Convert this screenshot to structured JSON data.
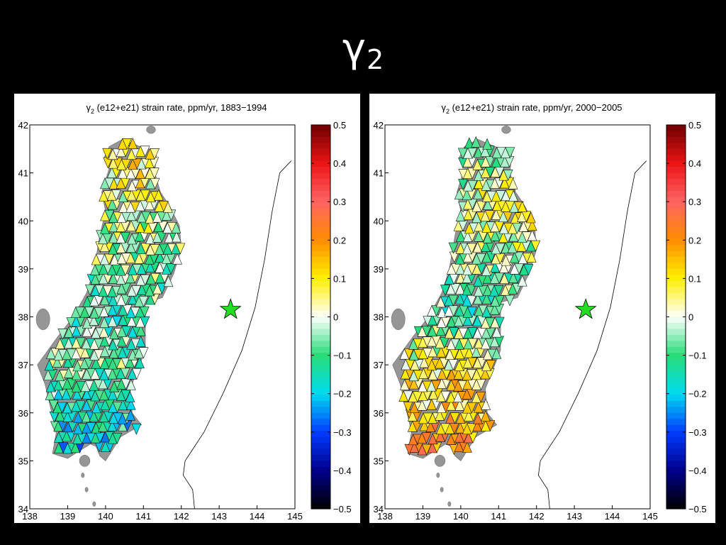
{
  "slide": {
    "title_main": "γ",
    "title_sub": "2"
  },
  "chart_data": [
    {
      "type": "heatmap",
      "title_sym": "γ",
      "title_sub": "2",
      "title_rest": " (e12+e21) strain rate, ppm/yr, 1883−1994",
      "xlim": [
        138,
        145
      ],
      "ylim": [
        34,
        42
      ],
      "x_ticks": [
        "138",
        "139",
        "140",
        "141",
        "142",
        "143",
        "144",
        "145"
      ],
      "y_ticks": [
        "34",
        "35",
        "36",
        "37",
        "38",
        "39",
        "40",
        "41",
        "42"
      ],
      "colorbar": {
        "min": -0.5,
        "max": 0.5,
        "ticks": [
          "−0.5",
          "−0.4",
          "−0.3",
          "−0.2",
          "−0.1",
          "0",
          "0.1",
          "0.2",
          "0.3",
          "0.4",
          "0.5"
        ]
      },
      "epicenter": {
        "lon": 143.3,
        "lat": 38.15,
        "marker": "green-star"
      },
      "regions": [
        {
          "lat": 41.2,
          "value": 0.08
        },
        {
          "lat": 40.2,
          "value": 0.02
        },
        {
          "lat": 39.0,
          "value": -0.05
        },
        {
          "lat": 38.0,
          "value": -0.1
        },
        {
          "lat": 37.0,
          "value": -0.05
        },
        {
          "lat": 36.2,
          "value": -0.12
        },
        {
          "lat": 35.3,
          "value": -0.2
        }
      ],
      "grid": false,
      "colors": {
        "epicenter": "#22dd22",
        "land": "#969696"
      }
    },
    {
      "type": "heatmap",
      "title_sym": "γ",
      "title_sub": "2",
      "title_rest": " (e12+e21) strain rate, ppm/yr, 2000−2005",
      "xlim": [
        138,
        145
      ],
      "ylim": [
        34,
        42
      ],
      "x_ticks": [
        "138",
        "139",
        "140",
        "141",
        "142",
        "143",
        "144",
        "145"
      ],
      "y_ticks": [
        "34",
        "35",
        "36",
        "37",
        "38",
        "39",
        "40",
        "41",
        "42"
      ],
      "colorbar": {
        "min": -0.5,
        "max": 0.5,
        "ticks": [
          "−0.5",
          "−0.4",
          "−0.3",
          "−0.2",
          "−0.1",
          "0",
          "0.1",
          "0.2",
          "0.3",
          "0.4",
          "0.5"
        ]
      },
      "epicenter": {
        "lon": 143.3,
        "lat": 38.15,
        "marker": "green-star"
      },
      "regions": [
        {
          "lat": 41.2,
          "value": -0.05
        },
        {
          "lat": 40.2,
          "value": 0.05
        },
        {
          "lat": 39.0,
          "value": -0.05
        },
        {
          "lat": 38.0,
          "value": -0.1
        },
        {
          "lat": 37.0,
          "value": 0.06
        },
        {
          "lat": 36.2,
          "value": 0.1
        },
        {
          "lat": 35.3,
          "value": 0.22
        }
      ],
      "grid": false,
      "colors": {
        "epicenter": "#22dd22",
        "land": "#969696"
      }
    }
  ]
}
